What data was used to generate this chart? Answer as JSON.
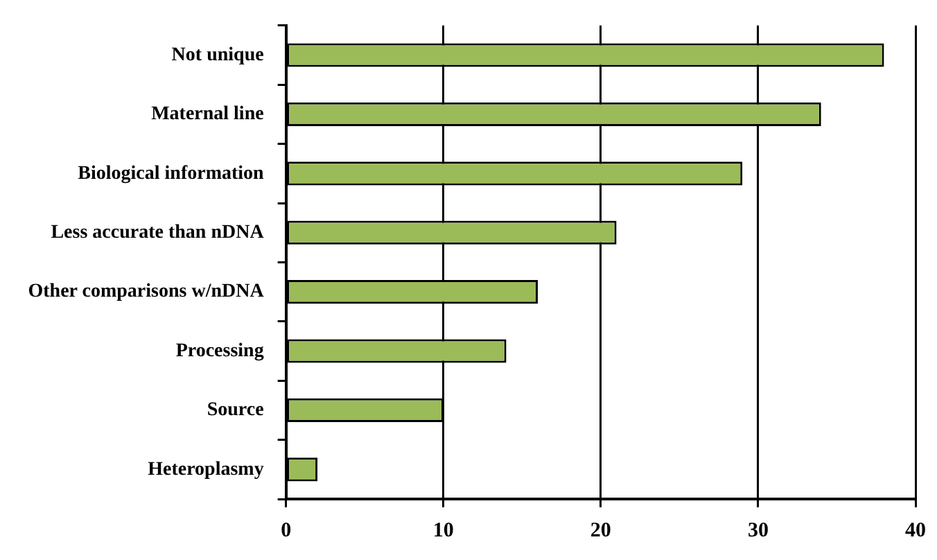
{
  "chart_data": {
    "type": "bar",
    "orientation": "horizontal",
    "categories": [
      "Not unique",
      "Maternal line",
      "Biological information",
      "Less accurate than nDNA",
      "Other comparisons w/nDNA",
      "Processing",
      "Source",
      "Heteroplasmy"
    ],
    "values": [
      38,
      34,
      29,
      21,
      16,
      14,
      10,
      2
    ],
    "color": "#9bbb59",
    "xlim": [
      0,
      40
    ],
    "xticks": [
      0,
      10,
      20,
      30,
      40
    ],
    "grid": "x",
    "legend": false
  }
}
